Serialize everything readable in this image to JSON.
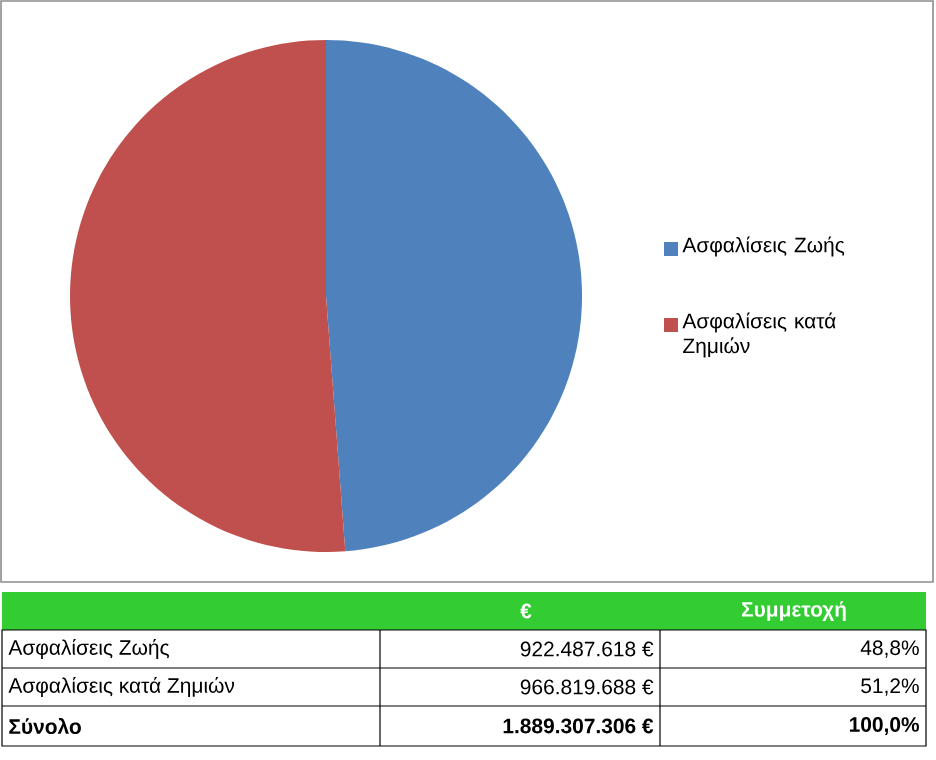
{
  "chart_data": {
    "type": "pie",
    "categories": [
      "Ασφαλίσεις Ζωής",
      "Ασφαλίσεις κατά Ζημιών"
    ],
    "values": [
      48.8,
      51.2
    ],
    "colors": [
      "#4f81bd",
      "#c0504d"
    ],
    "legend": "right",
    "annotations": [
      "€",
      "Συμμετοχή",
      "48,8%",
      "51,2%",
      "Σύνολο",
      "1.889.307.306 €",
      "100,0%",
      "922.487.618 €",
      "966.819.688 €"
    ]
  }
}
